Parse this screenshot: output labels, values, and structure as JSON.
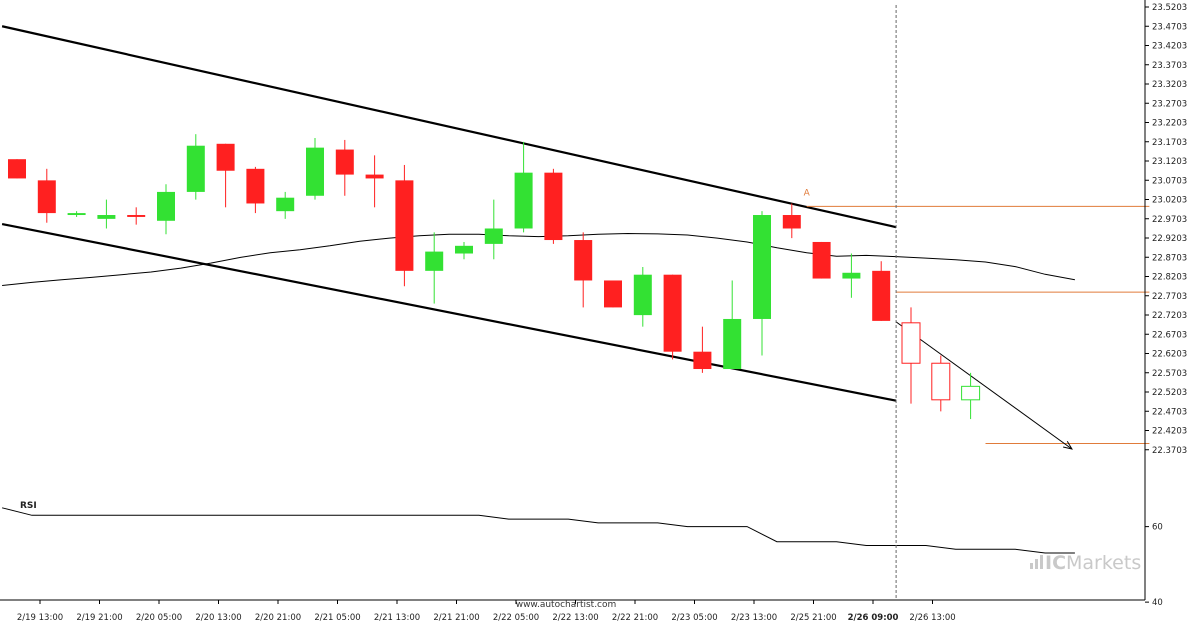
{
  "chart_data": {
    "type": "candlestick",
    "title": "",
    "y_axis": {
      "min": 22.3203,
      "max": 23.5203,
      "ticks": [
        "23.5203",
        "23.4703",
        "23.4203",
        "23.3703",
        "23.3203",
        "23.2703",
        "23.2203",
        "23.1703",
        "23.1203",
        "23.0703",
        "23.0203",
        "22.9703",
        "22.9203",
        "22.8703",
        "22.8203",
        "22.7703",
        "22.7203",
        "22.6703",
        "22.6203",
        "22.5703",
        "22.5203",
        "22.4703",
        "22.4203",
        "22.3703"
      ]
    },
    "x_axis": {
      "tick_labels": [
        "2/19 13:00",
        "2/19 21:00",
        "2/20 05:00",
        "2/20 13:00",
        "2/20 21:00",
        "2/21 05:00",
        "2/21 13:00",
        "2/21 21:00",
        "2/22 05:00",
        "2/22 13:00",
        "2/22 21:00",
        "2/23 05:00",
        "2/23 13:00",
        "2/25 21:00",
        "2/26 09:00",
        "2/26 13:00"
      ],
      "highlighted_label": "2/26 09:00"
    },
    "candles": [
      {
        "o": 23.125,
        "h": 23.125,
        "l": 23.075,
        "c": 23.075
      },
      {
        "o": 23.07,
        "h": 23.1,
        "l": 22.96,
        "c": 22.985
      },
      {
        "o": 22.98,
        "h": 22.99,
        "l": 22.975,
        "c": 22.985
      },
      {
        "o": 22.97,
        "h": 23.02,
        "l": 22.945,
        "c": 22.98
      },
      {
        "o": 22.98,
        "h": 23.0,
        "l": 22.955,
        "c": 22.975
      },
      {
        "o": 22.965,
        "h": 23.06,
        "l": 22.93,
        "c": 23.04
      },
      {
        "o": 23.04,
        "h": 23.19,
        "l": 23.02,
        "c": 23.16
      },
      {
        "o": 23.165,
        "h": 23.165,
        "l": 23.0,
        "c": 23.095
      },
      {
        "o": 23.1,
        "h": 23.105,
        "l": 22.985,
        "c": 23.01
      },
      {
        "o": 22.99,
        "h": 23.04,
        "l": 22.97,
        "c": 23.025
      },
      {
        "o": 23.03,
        "h": 23.18,
        "l": 23.02,
        "c": 23.155
      },
      {
        "o": 23.15,
        "h": 23.175,
        "l": 23.03,
        "c": 23.085
      },
      {
        "o": 23.085,
        "h": 23.135,
        "l": 23.0,
        "c": 23.075
      },
      {
        "o": 23.07,
        "h": 23.11,
        "l": 22.795,
        "c": 22.835
      },
      {
        "o": 22.835,
        "h": 22.935,
        "l": 22.75,
        "c": 22.885
      },
      {
        "o": 22.88,
        "h": 22.91,
        "l": 22.865,
        "c": 22.9
      },
      {
        "o": 22.905,
        "h": 23.02,
        "l": 22.865,
        "c": 22.945
      },
      {
        "o": 22.945,
        "h": 23.17,
        "l": 22.935,
        "c": 23.09
      },
      {
        "o": 23.09,
        "h": 23.1,
        "l": 22.905,
        "c": 22.915
      },
      {
        "o": 22.915,
        "h": 22.935,
        "l": 22.74,
        "c": 22.81
      },
      {
        "o": 22.81,
        "h": 22.81,
        "l": 22.74,
        "c": 22.74
      },
      {
        "o": 22.72,
        "h": 22.845,
        "l": 22.69,
        "c": 22.825
      },
      {
        "o": 22.825,
        "h": 22.825,
        "l": 22.605,
        "c": 22.625
      },
      {
        "o": 22.625,
        "h": 22.69,
        "l": 22.57,
        "c": 22.58
      },
      {
        "o": 22.58,
        "h": 22.81,
        "l": 22.58,
        "c": 22.71
      },
      {
        "o": 22.71,
        "h": 22.99,
        "l": 22.615,
        "c": 22.98
      },
      {
        "o": 22.98,
        "h": 23.01,
        "l": 22.92,
        "c": 22.945
      },
      {
        "o": 22.91,
        "h": 22.91,
        "l": 22.815,
        "c": 22.815
      },
      {
        "o": 22.815,
        "h": 22.88,
        "l": 22.765,
        "c": 22.83
      },
      {
        "o": 22.835,
        "h": 22.86,
        "l": 22.705,
        "c": 22.705
      },
      {
        "o": 22.7,
        "h": 22.74,
        "l": 22.49,
        "c": 22.595
      },
      {
        "o": 22.595,
        "h": 22.615,
        "l": 22.47,
        "c": 22.5
      },
      {
        "o": 22.5,
        "h": 22.57,
        "l": 22.45,
        "c": 22.535
      }
    ],
    "moving_average": [
      22.797,
      22.805,
      22.812,
      22.818,
      22.825,
      22.832,
      22.842,
      22.855,
      22.87,
      22.882,
      22.89,
      22.9,
      22.912,
      22.92,
      22.926,
      22.93,
      22.93,
      22.926,
      22.924,
      22.926,
      22.93,
      22.932,
      22.931,
      22.928,
      22.92,
      22.91,
      22.895,
      22.882,
      22.873,
      22.875,
      22.872,
      22.868,
      22.864,
      22.858,
      22.846,
      22.826,
      22.812
    ],
    "channel": {
      "upper": {
        "from": {
          "bar": -0.5,
          "y": 23.4703
        },
        "to": {
          "bar": 29.5,
          "y": 22.9485
        }
      },
      "lower": {
        "from": {
          "bar": -0.5,
          "y": 22.9566
        },
        "to": {
          "bar": 29.5,
          "y": 22.4977
        }
      }
    },
    "projection_arrow": {
      "from": {
        "bar": 29.5,
        "y": 22.7025
      },
      "to": {
        "bar": 35.4,
        "y": 22.3723
      }
    },
    "horizontal_levels": [
      {
        "y": 23.0024,
        "from_bar": 26.5,
        "to_bar": 38.0
      },
      {
        "y": 22.7796,
        "from_bar": 29.5,
        "to_bar": 38.0
      },
      {
        "y": 22.3865,
        "from_bar": 32.5,
        "to_bar": 38.0
      }
    ],
    "vertical_marker_bar": 29.5,
    "pattern_marker": {
      "label": "A",
      "bar": 26.5,
      "y": 23.028
    },
    "rsi": {
      "label": "RSI",
      "ticks": [
        "60",
        "40"
      ],
      "min": 35,
      "max": 75,
      "values": [
        65,
        63,
        63,
        63,
        63,
        63,
        63,
        63,
        63,
        63,
        63,
        63,
        63,
        63,
        63,
        63,
        63,
        62,
        62,
        62,
        61,
        61,
        61,
        60,
        60,
        60,
        56,
        56,
        56,
        55,
        55,
        55,
        54,
        54,
        54,
        53,
        53
      ]
    },
    "colors": {
      "bull": "#33e133",
      "bear": "#ff2020",
      "line": "#000000",
      "level": "#e07b3a"
    }
  },
  "footer": {
    "source": "www.autochartist.com",
    "brand_ic": "IC",
    "brand_markets": "Markets"
  }
}
